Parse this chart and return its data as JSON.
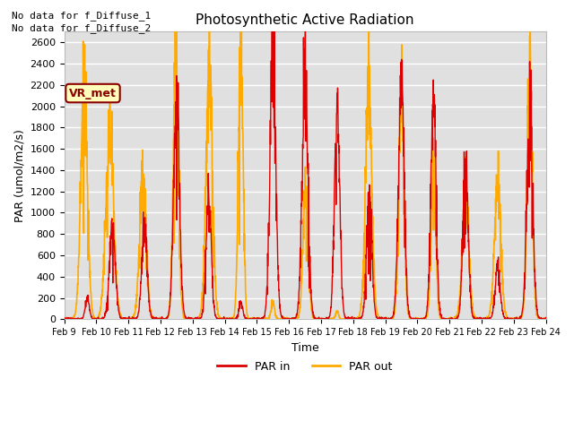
{
  "title": "Photosynthetic Active Radiation",
  "ylabel": "PAR (umol/m2/s)",
  "xlabel": "Time",
  "ylim": [
    0,
    2700
  ],
  "bg_color": "#e0e0e0",
  "annotation1": "No data for f_Diffuse_1",
  "annotation2": "No data for f_Diffuse_2",
  "vr_met_label": "VR_met",
  "par_in_color": "#dd0000",
  "par_out_color": "#ffaa00",
  "xtick_labels": [
    "Feb 9",
    "Feb 10",
    "Feb 11",
    "Feb 12",
    "Feb 13",
    "Feb 14",
    "Feb 15",
    "Feb 16",
    "Feb 17",
    "Feb 18",
    "Feb 19",
    "Feb 20",
    "Feb 21",
    "Feb 22",
    "Feb 23",
    "Feb 24"
  ],
  "ytick_values": [
    0,
    200,
    400,
    600,
    800,
    1000,
    1200,
    1400,
    1600,
    1800,
    2000,
    2200,
    2400,
    2600
  ],
  "n_days": 15,
  "pts_per_day": 144,
  "day_peaks": {
    "par_in": [
      200,
      870,
      920,
      2020,
      1130,
      160,
      2480,
      2300,
      2050,
      1170,
      2200,
      2040,
      1480,
      480,
      2000
    ],
    "par_out": [
      2280,
      1750,
      1350,
      2420,
      2280,
      2660,
      160,
      1220,
      80,
      2100,
      2060,
      1450,
      1240,
      1240,
      2400
    ],
    "par_in_center": [
      0.72,
      0.5,
      0.5,
      0.5,
      0.5,
      0.5,
      0.5,
      0.5,
      0.5,
      0.5,
      0.5,
      0.5,
      0.5,
      0.5,
      0.5
    ],
    "par_out_center": [
      0.62,
      0.42,
      0.45,
      0.48,
      0.52,
      0.5,
      0.5,
      0.52,
      0.5,
      0.48,
      0.5,
      0.5,
      0.5,
      0.5,
      0.5
    ],
    "par_in_width": [
      0.06,
      0.09,
      0.08,
      0.09,
      0.08,
      0.06,
      0.09,
      0.09,
      0.08,
      0.08,
      0.09,
      0.08,
      0.08,
      0.08,
      0.09
    ],
    "par_out_width": [
      0.1,
      0.12,
      0.1,
      0.08,
      0.1,
      0.07,
      0.05,
      0.08,
      0.04,
      0.1,
      0.08,
      0.07,
      0.1,
      0.1,
      0.08
    ]
  }
}
